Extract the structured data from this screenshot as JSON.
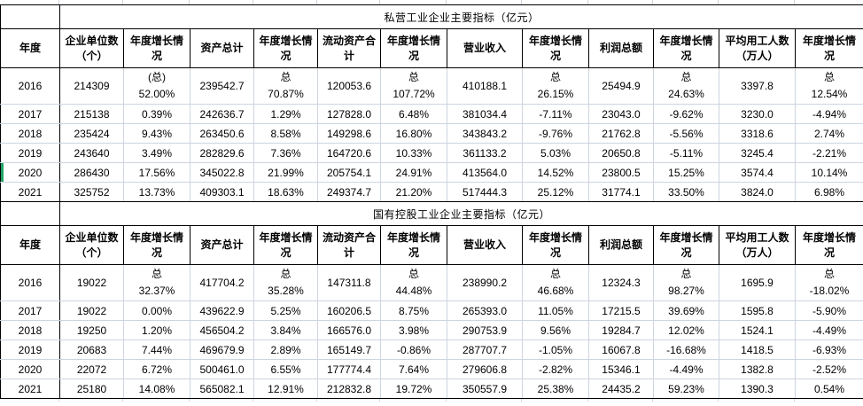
{
  "colors": {
    "grid_line": "#cdd5df",
    "table_border": "#000000",
    "selection_green": "#21a366",
    "text": "#000000",
    "background": "#ffffff"
  },
  "tables": [
    {
      "title": "私营工业企业主要指标（亿元）",
      "columns": [
        "年度",
        "企业单位数（个）",
        "年度增长情况",
        "资产总计",
        "年度增长情况",
        "流动资产合计",
        "年度增长情况",
        "营业收入",
        "年度增长情况",
        "利润总额",
        "年度增长情况",
        "平均用工人数（万人）",
        "年度增长情况"
      ],
      "rows": [
        {
          "year": "2016",
          "cells": [
            [
              "214309"
            ],
            [
              "(总)",
              "52.00%"
            ],
            [
              "239542.7"
            ],
            [
              "总",
              "70.87%"
            ],
            [
              "120053.6"
            ],
            [
              "总",
              "107.72%"
            ],
            [
              "410188.1"
            ],
            [
              "总",
              "26.15%"
            ],
            [
              "25494.9"
            ],
            [
              "总",
              "24.63%"
            ],
            [
              "3397.8"
            ],
            [
              "总",
              "12.54%"
            ]
          ]
        },
        {
          "year": "2017",
          "cells": [
            [
              "215138"
            ],
            [
              "0.39%"
            ],
            [
              "242636.7"
            ],
            [
              "1.29%"
            ],
            [
              "127828.0"
            ],
            [
              "6.48%"
            ],
            [
              "381034.4"
            ],
            [
              "-7.11%"
            ],
            [
              "23043.0"
            ],
            [
              "-9.62%"
            ],
            [
              "3230.0"
            ],
            [
              "-4.94%"
            ]
          ]
        },
        {
          "year": "2018",
          "cells": [
            [
              "235424"
            ],
            [
              "9.43%"
            ],
            [
              "263450.6"
            ],
            [
              "8.58%"
            ],
            [
              "149298.6"
            ],
            [
              "16.80%"
            ],
            [
              "343843.2"
            ],
            [
              "-9.76%"
            ],
            [
              "21762.8"
            ],
            [
              "-5.56%"
            ],
            [
              "3318.6"
            ],
            [
              "2.74%"
            ]
          ]
        },
        {
          "year": "2019",
          "cells": [
            [
              "243640"
            ],
            [
              "3.49%"
            ],
            [
              "282829.6"
            ],
            [
              "7.36%"
            ],
            [
              "164720.6"
            ],
            [
              "10.33%"
            ],
            [
              "361133.2"
            ],
            [
              "5.03%"
            ],
            [
              "20650.8"
            ],
            [
              "-5.11%"
            ],
            [
              "3245.4"
            ],
            [
              "-2.21%"
            ]
          ]
        },
        {
          "year": "2020",
          "highlight": true,
          "cells": [
            [
              "286430"
            ],
            [
              "17.56%"
            ],
            [
              "345022.8"
            ],
            [
              "21.99%"
            ],
            [
              "205754.1"
            ],
            [
              "24.91%"
            ],
            [
              "413564.0"
            ],
            [
              "14.52%"
            ],
            [
              "23800.5"
            ],
            [
              "15.25%"
            ],
            [
              "3574.4"
            ],
            [
              "10.14%"
            ]
          ]
        },
        {
          "year": "2021",
          "cells": [
            [
              "325752"
            ],
            [
              "13.73%"
            ],
            [
              "409303.1"
            ],
            [
              "18.63%"
            ],
            [
              "249374.7"
            ],
            [
              "21.20%"
            ],
            [
              "517444.3"
            ],
            [
              "25.12%"
            ],
            [
              "31774.1"
            ],
            [
              "33.50%"
            ],
            [
              "3824.0"
            ],
            [
              "6.98%"
            ]
          ]
        }
      ]
    },
    {
      "title": "国有控股工业企业主要指标（亿元）",
      "columns": [
        "年度",
        "企业单位数（个）",
        "年度增长情况",
        "资产总计",
        "年度增长情况",
        "流动资产合计",
        "年度增长情况",
        "营业收入",
        "年度增长情况",
        "利润总额",
        "年度增长情况",
        "平均用工人数（万人）",
        "年度增长情况"
      ],
      "rows": [
        {
          "year": "2016",
          "cells": [
            [
              "19022"
            ],
            [
              "总",
              "32.37%"
            ],
            [
              "417704.2"
            ],
            [
              "总",
              "35.28%"
            ],
            [
              "147311.8"
            ],
            [
              "总",
              "44.48%"
            ],
            [
              "238990.2"
            ],
            [
              "总",
              "46.68%"
            ],
            [
              "12324.3"
            ],
            [
              "总",
              "98.27%"
            ],
            [
              "1695.9"
            ],
            [
              "总",
              "-18.02%"
            ]
          ]
        },
        {
          "year": "2017",
          "cells": [
            [
              "19022"
            ],
            [
              "0.00%"
            ],
            [
              "439622.9"
            ],
            [
              "5.25%"
            ],
            [
              "160206.5"
            ],
            [
              "8.75%"
            ],
            [
              "265393.0"
            ],
            [
              "11.05%"
            ],
            [
              "17215.5"
            ],
            [
              "39.69%"
            ],
            [
              "1595.8"
            ],
            [
              "-5.90%"
            ]
          ]
        },
        {
          "year": "2018",
          "cells": [
            [
              "19250"
            ],
            [
              "1.20%"
            ],
            [
              "456504.2"
            ],
            [
              "3.84%"
            ],
            [
              "166576.0"
            ],
            [
              "3.98%"
            ],
            [
              "290753.9"
            ],
            [
              "9.56%"
            ],
            [
              "19284.7"
            ],
            [
              "12.02%"
            ],
            [
              "1524.1"
            ],
            [
              "-4.49%"
            ]
          ]
        },
        {
          "year": "2019",
          "cells": [
            [
              "20683"
            ],
            [
              "7.44%"
            ],
            [
              "469679.9"
            ],
            [
              "2.89%"
            ],
            [
              "165149.7"
            ],
            [
              "-0.86%"
            ],
            [
              "287707.7"
            ],
            [
              "-1.05%"
            ],
            [
              "16067.8"
            ],
            [
              "-16.68%"
            ],
            [
              "1418.5"
            ],
            [
              "-6.93%"
            ]
          ]
        },
        {
          "year": "2020",
          "cells": [
            [
              "22072"
            ],
            [
              "6.72%"
            ],
            [
              "500461.0"
            ],
            [
              "6.55%"
            ],
            [
              "177774.4"
            ],
            [
              "7.64%"
            ],
            [
              "279606.8"
            ],
            [
              "-2.82%"
            ],
            [
              "15346.1"
            ],
            [
              "-4.49%"
            ],
            [
              "1382.8"
            ],
            [
              "-2.52%"
            ]
          ]
        },
        {
          "year": "2021",
          "cells": [
            [
              "25180"
            ],
            [
              "14.08%"
            ],
            [
              "565082.1"
            ],
            [
              "12.91%"
            ],
            [
              "212832.8"
            ],
            [
              "19.72%"
            ],
            [
              "350557.9"
            ],
            [
              "25.38%"
            ],
            [
              "24435.2"
            ],
            [
              "59.23%"
            ],
            [
              "1390.3"
            ],
            [
              "0.54%"
            ]
          ]
        }
      ]
    }
  ]
}
